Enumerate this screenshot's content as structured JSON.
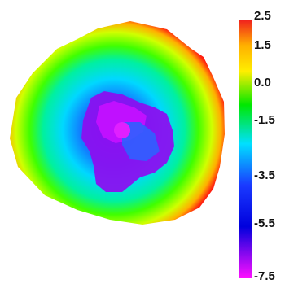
{
  "chart_data": {
    "type": "heatmap",
    "title": "",
    "colorbar": {
      "min": -7.5,
      "max": 2.5,
      "tick_labels": [
        "2.5",
        "1.5",
        "0.0",
        "-1.5",
        "-3.5",
        "-5.5",
        "-7.5"
      ],
      "tick_values": [
        2.5,
        1.5,
        0.0,
        -1.5,
        -3.5,
        -5.5,
        -7.5
      ],
      "colors": [
        "#f01e1e",
        "#ffe800",
        "#00e800",
        "#00e0ff",
        "#1a3aff",
        "#0000cc",
        "#ff10ff"
      ]
    },
    "field": {
      "description_levels": [
        {
          "region": "outer rim",
          "value": 2.0
        },
        {
          "region": "outer ring",
          "value": 1.0
        },
        {
          "region": "middle ring",
          "value": 0.0
        },
        {
          "region": "inner ring",
          "value": -1.5
        },
        {
          "region": "center",
          "value": -7.5
        }
      ]
    }
  }
}
